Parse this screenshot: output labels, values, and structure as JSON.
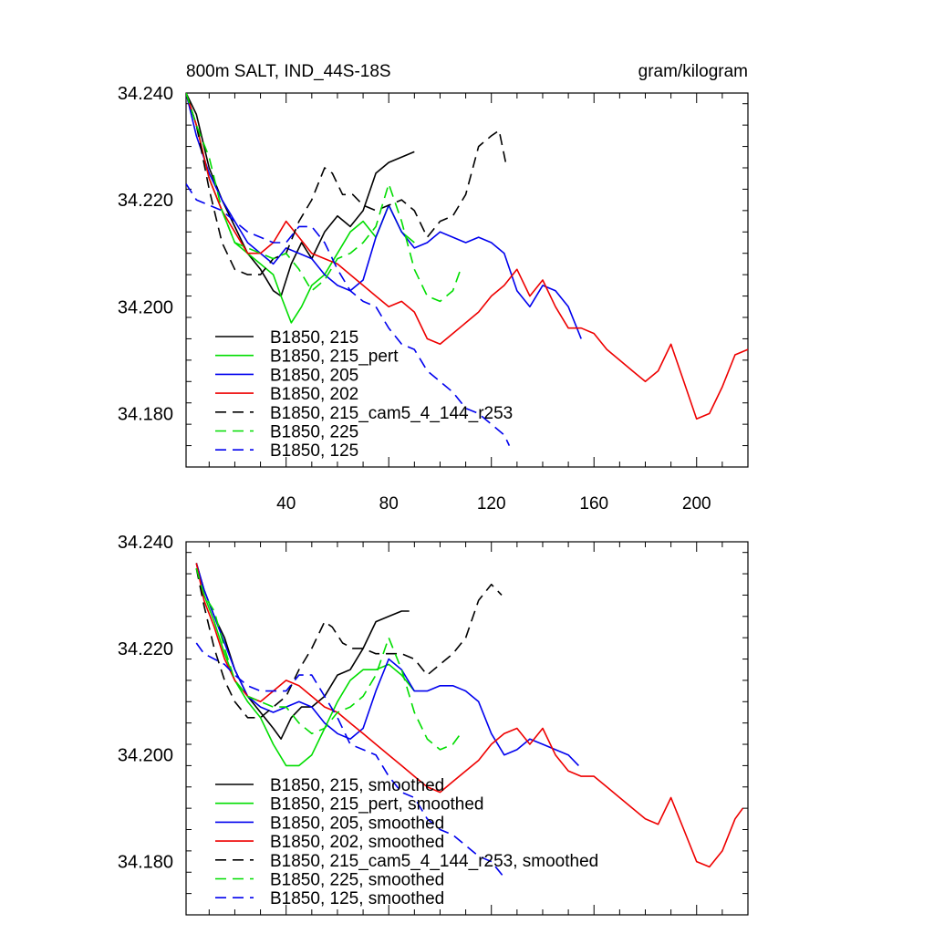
{
  "chart_data": [
    {
      "type": "line",
      "title_left": "800m SALT, IND_44S-18S",
      "title_right": "gram/kilogram",
      "xlim": [
        1,
        220
      ],
      "ylim": [
        34.17,
        34.24
      ],
      "xticks": [
        40,
        80,
        120,
        160,
        200
      ],
      "xtick_labels": [
        "40",
        "80",
        "120",
        "160",
        "200"
      ],
      "yticks": [
        34.18,
        34.2,
        34.22,
        34.24
      ],
      "ytick_labels": [
        "34.180",
        "34.200",
        "34.220",
        "34.240"
      ],
      "series": [
        {
          "name": "B1850, 215",
          "color": "#000000",
          "dash": false,
          "x": [
            1,
            5,
            10,
            15,
            20,
            25,
            30,
            35,
            38,
            42,
            46,
            50,
            55,
            60,
            65,
            70,
            75,
            80,
            85,
            90
          ],
          "y": [
            34.24,
            34.236,
            34.226,
            34.22,
            34.215,
            34.21,
            34.207,
            34.203,
            34.202,
            34.208,
            34.212,
            34.209,
            34.214,
            34.217,
            34.215,
            34.218,
            34.225,
            34.227,
            34.228,
            34.229
          ]
        },
        {
          "name": "B1850, 215_pert",
          "color": "#00dd00",
          "dash": false,
          "x": [
            1,
            5,
            10,
            15,
            20,
            25,
            30,
            35,
            38,
            42,
            46,
            50,
            55,
            60,
            65,
            70,
            75,
            80,
            85,
            90
          ],
          "y": [
            34.24,
            34.234,
            34.224,
            34.218,
            34.212,
            34.21,
            34.208,
            34.206,
            34.202,
            34.197,
            34.2,
            34.204,
            34.206,
            34.21,
            34.214,
            34.216,
            34.213,
            34.219,
            34.214,
            34.212
          ]
        },
        {
          "name": "B1850, 205",
          "color": "#0000ee",
          "dash": false,
          "x": [
            1,
            5,
            10,
            15,
            20,
            25,
            30,
            35,
            40,
            45,
            50,
            55,
            60,
            65,
            70,
            75,
            80,
            85,
            90,
            95,
            100,
            105,
            110,
            115,
            120,
            125,
            130,
            135,
            140,
            145,
            150,
            155
          ],
          "y": [
            34.24,
            34.232,
            34.225,
            34.22,
            34.216,
            34.212,
            34.21,
            34.208,
            34.211,
            34.21,
            34.209,
            34.206,
            34.204,
            34.203,
            34.205,
            34.213,
            34.219,
            34.214,
            34.211,
            34.212,
            34.214,
            34.213,
            34.212,
            34.213,
            34.212,
            34.21,
            34.203,
            34.2,
            34.204,
            34.203,
            34.2,
            34.194
          ]
        },
        {
          "name": "B1850, 202",
          "color": "#ee0000",
          "dash": false,
          "x": [
            1,
            5,
            10,
            15,
            20,
            25,
            30,
            35,
            40,
            45,
            50,
            55,
            60,
            65,
            70,
            75,
            80,
            85,
            90,
            95,
            100,
            105,
            110,
            115,
            120,
            125,
            130,
            135,
            140,
            145,
            150,
            155,
            160,
            165,
            170,
            175,
            180,
            185,
            190,
            195,
            200,
            205,
            210,
            215,
            220
          ],
          "y": [
            34.24,
            34.234,
            34.224,
            34.218,
            34.214,
            34.21,
            34.21,
            34.212,
            34.216,
            34.213,
            34.21,
            34.209,
            34.208,
            34.206,
            34.204,
            34.202,
            34.2,
            34.201,
            34.199,
            34.194,
            34.193,
            34.195,
            34.197,
            34.199,
            34.202,
            34.204,
            34.207,
            34.202,
            34.205,
            34.2,
            34.196,
            34.196,
            34.195,
            34.192,
            34.19,
            34.188,
            34.186,
            34.188,
            34.193,
            34.186,
            34.179,
            34.18,
            34.185,
            34.191,
            34.192
          ]
        },
        {
          "name": "B1850, 215_cam5_4_144_r253",
          "color": "#000000",
          "dash": true,
          "x": [
            1,
            5,
            10,
            15,
            20,
            25,
            30,
            35,
            40,
            45,
            50,
            55,
            58,
            62,
            66,
            70,
            75,
            80,
            85,
            90,
            95,
            100,
            105,
            110,
            115,
            120,
            123,
            126
          ],
          "y": [
            34.24,
            34.234,
            34.222,
            34.212,
            34.207,
            34.206,
            34.206,
            34.209,
            34.21,
            34.216,
            34.22,
            34.226,
            34.225,
            34.221,
            34.221,
            34.219,
            34.218,
            34.219,
            34.22,
            34.218,
            34.213,
            34.216,
            34.217,
            34.221,
            34.23,
            34.232,
            34.233,
            34.226
          ]
        },
        {
          "name": "B1850, 225",
          "color": "#00dd00",
          "dash": true,
          "x": [
            1,
            5,
            10,
            15,
            20,
            25,
            30,
            35,
            40,
            45,
            50,
            55,
            60,
            65,
            70,
            75,
            80,
            85,
            90,
            95,
            100,
            105,
            108
          ],
          "y": [
            34.24,
            34.234,
            34.228,
            34.218,
            34.212,
            34.211,
            34.21,
            34.209,
            34.21,
            34.207,
            34.203,
            34.205,
            34.209,
            34.21,
            34.212,
            34.215,
            34.223,
            34.216,
            34.207,
            34.202,
            34.201,
            34.203,
            34.207
          ]
        },
        {
          "name": "B1850, 125",
          "color": "#0000ee",
          "dash": true,
          "x": [
            1,
            5,
            10,
            15,
            20,
            25,
            30,
            35,
            40,
            45,
            50,
            55,
            60,
            65,
            70,
            75,
            80,
            85,
            90,
            95,
            100,
            105,
            110,
            115,
            120,
            125,
            127
          ],
          "y": [
            34.223,
            34.22,
            34.219,
            34.218,
            34.216,
            34.214,
            34.213,
            34.212,
            34.212,
            34.215,
            34.215,
            34.212,
            34.207,
            34.203,
            34.201,
            34.2,
            34.196,
            34.193,
            34.192,
            34.188,
            34.186,
            34.184,
            34.181,
            34.18,
            34.178,
            34.176,
            34.174
          ]
        }
      ],
      "legend_position": "bottom-left"
    },
    {
      "type": "line",
      "title_left": "",
      "title_right": "",
      "xlim": [
        1,
        220
      ],
      "ylim": [
        34.17,
        34.24
      ],
      "xticks": [
        40,
        80,
        120,
        160,
        200
      ],
      "xtick_labels": [],
      "yticks": [
        34.18,
        34.2,
        34.22,
        34.24
      ],
      "ytick_labels": [
        "34.180",
        "34.200",
        "34.220",
        "34.240"
      ],
      "series": [
        {
          "name": "B1850, 215, smoothed",
          "color": "#000000",
          "dash": false,
          "x": [
            5,
            8,
            12,
            16,
            20,
            25,
            30,
            35,
            38,
            42,
            46,
            50,
            55,
            60,
            65,
            70,
            75,
            80,
            85,
            88
          ],
          "y": [
            34.236,
            34.231,
            34.226,
            34.222,
            34.216,
            34.211,
            34.208,
            34.205,
            34.203,
            34.207,
            34.209,
            34.209,
            34.211,
            34.215,
            34.216,
            34.22,
            34.225,
            34.226,
            34.227,
            34.227
          ]
        },
        {
          "name": "B1850, 215_pert, smoothed",
          "color": "#00dd00",
          "dash": false,
          "x": [
            5,
            8,
            12,
            16,
            20,
            25,
            30,
            35,
            40,
            45,
            50,
            55,
            60,
            65,
            70,
            75,
            80,
            85,
            90
          ],
          "y": [
            34.236,
            34.23,
            34.225,
            34.219,
            34.214,
            34.21,
            34.207,
            34.202,
            34.198,
            34.198,
            34.2,
            34.205,
            34.21,
            34.214,
            34.216,
            34.216,
            34.217,
            34.215,
            34.212
          ]
        },
        {
          "name": "B1850, 205, smoothed",
          "color": "#0000ee",
          "dash": false,
          "x": [
            5,
            8,
            12,
            16,
            20,
            25,
            30,
            35,
            40,
            45,
            50,
            55,
            60,
            65,
            70,
            75,
            80,
            85,
            90,
            95,
            100,
            105,
            110,
            115,
            120,
            125,
            130,
            135,
            140,
            145,
            150,
            154
          ],
          "y": [
            34.236,
            34.231,
            34.226,
            34.221,
            34.216,
            34.211,
            34.209,
            34.208,
            34.209,
            34.21,
            34.209,
            34.206,
            34.204,
            34.203,
            34.205,
            34.212,
            34.218,
            34.216,
            34.212,
            34.212,
            34.213,
            34.213,
            34.212,
            34.21,
            34.204,
            34.2,
            34.201,
            34.203,
            34.202,
            34.201,
            34.2,
            34.198
          ]
        },
        {
          "name": "B1850, 202, smoothed",
          "color": "#ee0000",
          "dash": false,
          "x": [
            5,
            8,
            12,
            16,
            20,
            25,
            30,
            35,
            40,
            45,
            50,
            55,
            60,
            65,
            70,
            75,
            80,
            85,
            90,
            95,
            100,
            105,
            110,
            115,
            120,
            125,
            130,
            135,
            140,
            145,
            150,
            155,
            160,
            165,
            170,
            175,
            180,
            185,
            190,
            195,
            200,
            205,
            210,
            215,
            218
          ],
          "y": [
            34.236,
            34.229,
            34.224,
            34.218,
            34.214,
            34.211,
            34.21,
            34.212,
            34.214,
            34.213,
            34.211,
            34.209,
            34.208,
            34.206,
            34.204,
            34.202,
            34.2,
            34.198,
            34.196,
            34.194,
            34.193,
            34.195,
            34.197,
            34.199,
            34.202,
            34.204,
            34.205,
            34.202,
            34.205,
            34.2,
            34.197,
            34.196,
            34.196,
            34.194,
            34.192,
            34.19,
            34.188,
            34.187,
            34.192,
            34.186,
            34.18,
            34.179,
            34.182,
            34.188,
            34.19
          ]
        },
        {
          "name": "B1850, 215_cam5_4_144_r253, smoothed",
          "color": "#000000",
          "dash": true,
          "x": [
            5,
            8,
            12,
            16,
            20,
            25,
            30,
            35,
            40,
            45,
            50,
            55,
            58,
            62,
            66,
            70,
            75,
            80,
            85,
            90,
            95,
            100,
            105,
            110,
            115,
            120,
            124
          ],
          "y": [
            34.235,
            34.228,
            34.22,
            34.214,
            34.21,
            34.207,
            34.207,
            34.209,
            34.211,
            34.216,
            34.22,
            34.225,
            34.224,
            34.221,
            34.22,
            34.22,
            34.219,
            34.219,
            34.219,
            34.218,
            34.215,
            34.217,
            34.219,
            34.222,
            34.229,
            34.232,
            34.23
          ]
        },
        {
          "name": "B1850, 225, smoothed",
          "color": "#00dd00",
          "dash": true,
          "x": [
            5,
            8,
            12,
            16,
            20,
            25,
            30,
            35,
            40,
            45,
            50,
            55,
            60,
            65,
            70,
            75,
            80,
            85,
            90,
            95,
            100,
            105,
            108
          ],
          "y": [
            34.235,
            34.23,
            34.227,
            34.22,
            34.214,
            34.211,
            34.21,
            34.209,
            34.209,
            34.206,
            34.204,
            34.205,
            34.208,
            34.209,
            34.211,
            34.215,
            34.222,
            34.216,
            34.208,
            34.203,
            34.201,
            34.202,
            34.204
          ]
        },
        {
          "name": "B1850, 125, smoothed",
          "color": "#0000ee",
          "dash": true,
          "x": [
            5,
            8,
            12,
            16,
            20,
            25,
            30,
            35,
            40,
            45,
            50,
            55,
            60,
            65,
            70,
            75,
            80,
            85,
            90,
            95,
            100,
            105,
            110,
            115,
            120,
            125
          ],
          "y": [
            34.221,
            34.219,
            34.218,
            34.217,
            34.215,
            34.213,
            34.212,
            34.212,
            34.212,
            34.215,
            34.215,
            34.211,
            34.207,
            34.202,
            34.201,
            34.2,
            34.196,
            34.193,
            34.192,
            34.188,
            34.186,
            34.185,
            34.183,
            34.181,
            34.18,
            34.177
          ]
        }
      ],
      "legend_position": "bottom-left"
    }
  ]
}
